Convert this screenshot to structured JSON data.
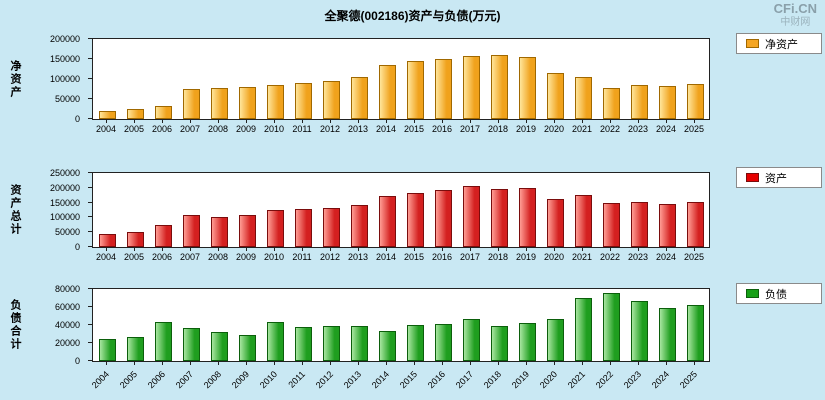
{
  "title": "全聚德(002186)资产与负债(万元)",
  "watermark": {
    "line1": "CFi.CN",
    "line2": "中财网"
  },
  "chart_data": [
    {
      "type": "bar",
      "name": "净资产",
      "ylabel": "净资产",
      "ylim": [
        0,
        200000
      ],
      "ytick": 50000,
      "colors": {
        "light": "#ffe59a",
        "dark": "#f0a21c",
        "border": "#a06800",
        "legend": "#f5a623"
      },
      "categories": [
        "2004",
        "2005",
        "2006",
        "2007",
        "2008",
        "2009",
        "2010",
        "2011",
        "2012",
        "2013",
        "2014",
        "2015",
        "2016",
        "2017",
        "2018",
        "2019",
        "2020",
        "2021",
        "2022",
        "2023",
        "2024",
        "2025"
      ],
      "values": [
        20000,
        26000,
        33000,
        75000,
        77000,
        81000,
        84000,
        89000,
        95000,
        104000,
        136000,
        146000,
        151000,
        158000,
        160000,
        156000,
        114000,
        104000,
        78000,
        86000,
        82000,
        88000
      ]
    },
    {
      "type": "bar",
      "name": "资产",
      "ylabel": "资产总计",
      "ylim": [
        0,
        250000
      ],
      "ytick": 50000,
      "colors": {
        "light": "#ff9d94",
        "dark": "#d42020",
        "border": "#7a0c0c",
        "legend": "#e60000"
      },
      "categories": [
        "2004",
        "2005",
        "2006",
        "2007",
        "2008",
        "2009",
        "2010",
        "2011",
        "2012",
        "2013",
        "2014",
        "2015",
        "2016",
        "2017",
        "2018",
        "2019",
        "2020",
        "2021",
        "2022",
        "2023",
        "2024",
        "2025"
      ],
      "values": [
        44000,
        50000,
        76000,
        108000,
        103000,
        109000,
        126000,
        128000,
        133000,
        141000,
        172000,
        184000,
        192000,
        205000,
        196000,
        198000,
        161000,
        174000,
        147000,
        152000,
        145000,
        151000
      ]
    },
    {
      "type": "bar",
      "name": "负债",
      "ylabel": "负债合计",
      "ylim": [
        0,
        80000
      ],
      "ytick": 20000,
      "colors": {
        "light": "#a8e6a0",
        "dark": "#1f9e1f",
        "border": "#0b5f0b",
        "legend": "#16a016"
      },
      "categories": [
        "2004",
        "2005",
        "2006",
        "2007",
        "2008",
        "2009",
        "2010",
        "2011",
        "2012",
        "2013",
        "2014",
        "2015",
        "2016",
        "2017",
        "2018",
        "2019",
        "2020",
        "2021",
        "2022",
        "2023",
        "2024",
        "2025"
      ],
      "values": [
        24000,
        26500,
        43000,
        36500,
        32000,
        28500,
        43000,
        38000,
        39000,
        39000,
        33000,
        39500,
        41500,
        46500,
        38500,
        42000,
        47000,
        70000,
        75000,
        67000,
        59000,
        62000
      ]
    }
  ]
}
